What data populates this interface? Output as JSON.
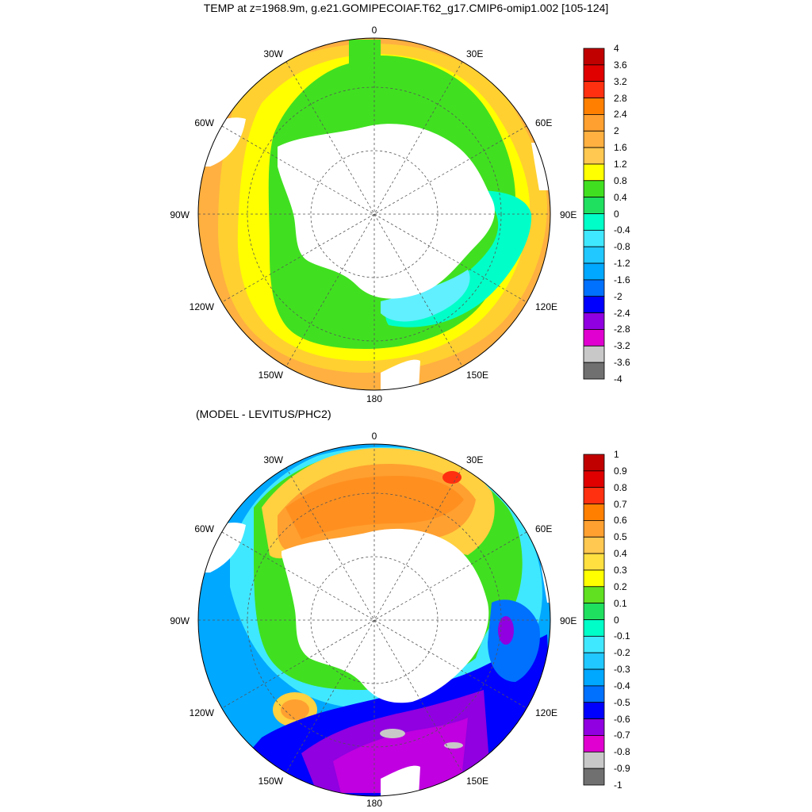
{
  "top_panel": {
    "title": "TEMP at z=1968.9m, g.e21.GOMIPECOIAF.T62_g17.CMIP6-omip1.002 [105-124]",
    "lon_labels": {
      "n": "0",
      "ne": "30E",
      "e1": "60E",
      "e": "90E",
      "se": "120E",
      "s2": "150E",
      "s": "180",
      "sw2": "150W",
      "sw": "120W",
      "w": "90W",
      "nw1": "60W",
      "nw": "30W"
    },
    "colorbar": {
      "labels": [
        "4",
        "3.6",
        "3.2",
        "2.8",
        "2.4",
        "2",
        "1.6",
        "1.2",
        "0.8",
        "0.4",
        "0",
        "-0.4",
        "-0.8",
        "-1.2",
        "-1.6",
        "-2",
        "-2.4",
        "-2.8",
        "-3.2",
        "-3.6",
        "-4"
      ],
      "colors": [
        "#c00000",
        "#e00000",
        "#ff3010",
        "#ff8000",
        "#ffa030",
        "#ffb040",
        "#ffc850",
        "#ffff00",
        "#40e020",
        "#20e060",
        "#00ffc8",
        "#40e8ff",
        "#20c8ff",
        "#00a8ff",
        "#0070ff",
        "#0000ff",
        "#9000e0",
        "#e000d0",
        "#c8c8c8",
        "#707070"
      ]
    }
  },
  "bottom_panel": {
    "title": "(MODEL - LEVITUS/PHC2)",
    "lon_labels": {
      "n": "0",
      "ne": "30E",
      "e1": "60E",
      "e": "90E",
      "se": "120E",
      "s2": "150E",
      "s": "180",
      "sw2": "150W",
      "sw": "120W",
      "w": "90W",
      "nw1": "60W",
      "nw": "30W"
    },
    "colorbar": {
      "labels": [
        "1",
        "0.9",
        "0.8",
        "0.7",
        "0.6",
        "0.5",
        "0.4",
        "0.3",
        "0.2",
        "0.1",
        "0",
        "-0.1",
        "-0.2",
        "-0.3",
        "-0.4",
        "-0.5",
        "-0.6",
        "-0.7",
        "-0.8",
        "-0.9",
        "-1"
      ],
      "colors": [
        "#c00000",
        "#e00000",
        "#ff3010",
        "#ff8000",
        "#ffa030",
        "#ffc850",
        "#ffe040",
        "#ffff00",
        "#60e020",
        "#20e060",
        "#00ffc8",
        "#40e8ff",
        "#20c8ff",
        "#00a8ff",
        "#0070ff",
        "#0000ff",
        "#9000e0",
        "#e000d0",
        "#c8c8c8",
        "#707070"
      ]
    }
  }
}
